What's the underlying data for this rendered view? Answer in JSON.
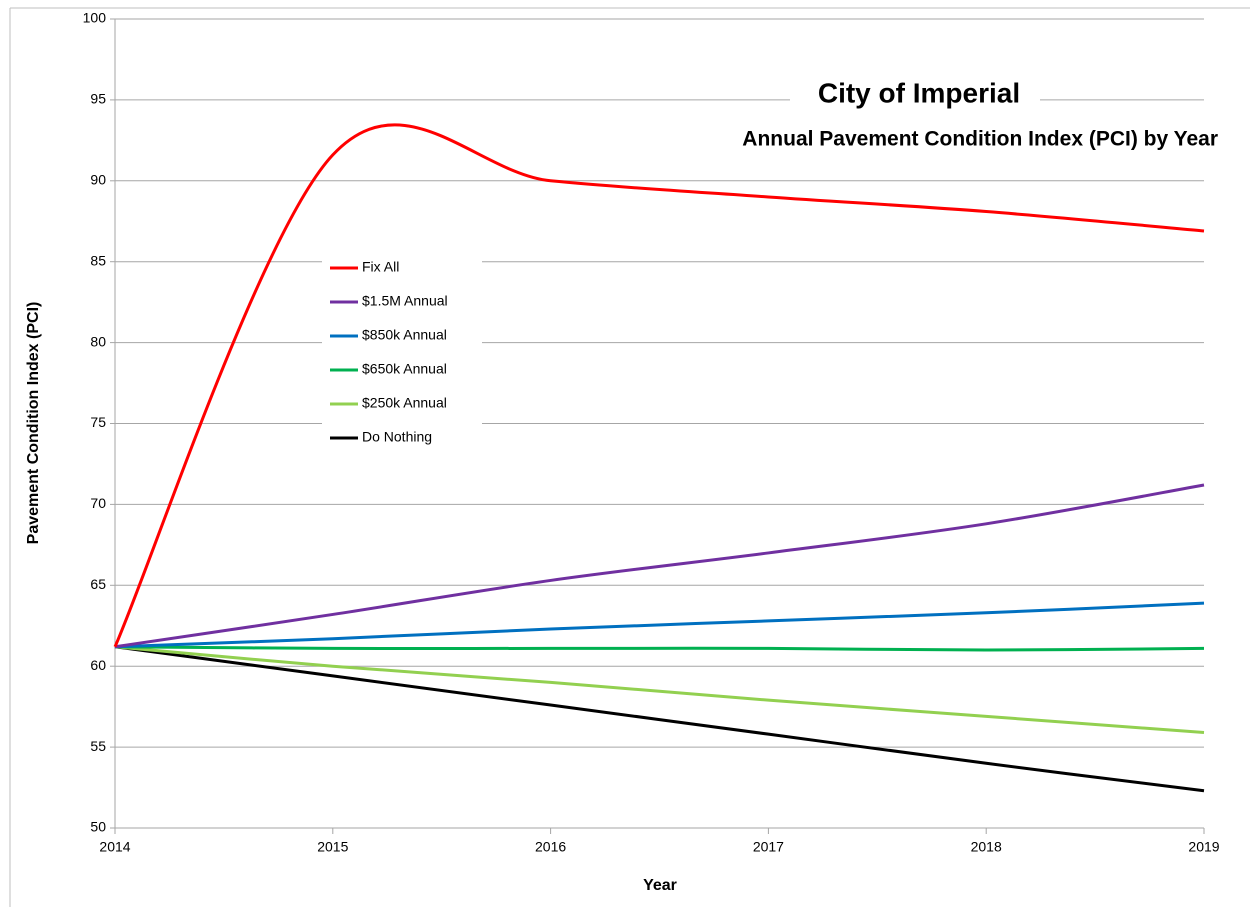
{
  "chart_data": {
    "type": "line",
    "title": "City of Imperial",
    "subtitle": "Annual Pavement Condition Index (PCI) by Year",
    "x_label": "Year",
    "y_label": "Pavement Condition Index (PCI)",
    "x": [
      2014,
      2015,
      2016,
      2017,
      2018,
      2019
    ],
    "xlim": [
      2014,
      2019
    ],
    "xticks": [
      2014,
      2015,
      2016,
      2017,
      2018,
      2019
    ],
    "ylim": [
      50,
      100
    ],
    "yticks": [
      50,
      55,
      60,
      65,
      70,
      75,
      80,
      85,
      90,
      95,
      100
    ],
    "grid": true,
    "smooth": true,
    "series": [
      {
        "name": "Fix All",
        "color": "#ff0000",
        "values": [
          61.2,
          91.6,
          90.0,
          89.0,
          88.1,
          86.9
        ]
      },
      {
        "name": "$1.5M Annual",
        "color": "#7030a0",
        "values": [
          61.2,
          63.2,
          65.3,
          67.0,
          68.8,
          71.2
        ]
      },
      {
        "name": "$850k Annual",
        "color": "#0070c0",
        "values": [
          61.2,
          61.7,
          62.3,
          62.8,
          63.3,
          63.9
        ]
      },
      {
        "name": "$650k Annual",
        "color": "#00b050",
        "values": [
          61.2,
          61.1,
          61.1,
          61.1,
          61.0,
          61.1
        ]
      },
      {
        "name": "$250k Annual",
        "color": "#92d050",
        "values": [
          61.2,
          60.0,
          59.0,
          57.9,
          56.9,
          55.9
        ]
      },
      {
        "name": "Do Nothing",
        "color": "#000000",
        "values": [
          61.2,
          59.4,
          57.6,
          55.8,
          54.0,
          52.3
        ]
      }
    ]
  }
}
